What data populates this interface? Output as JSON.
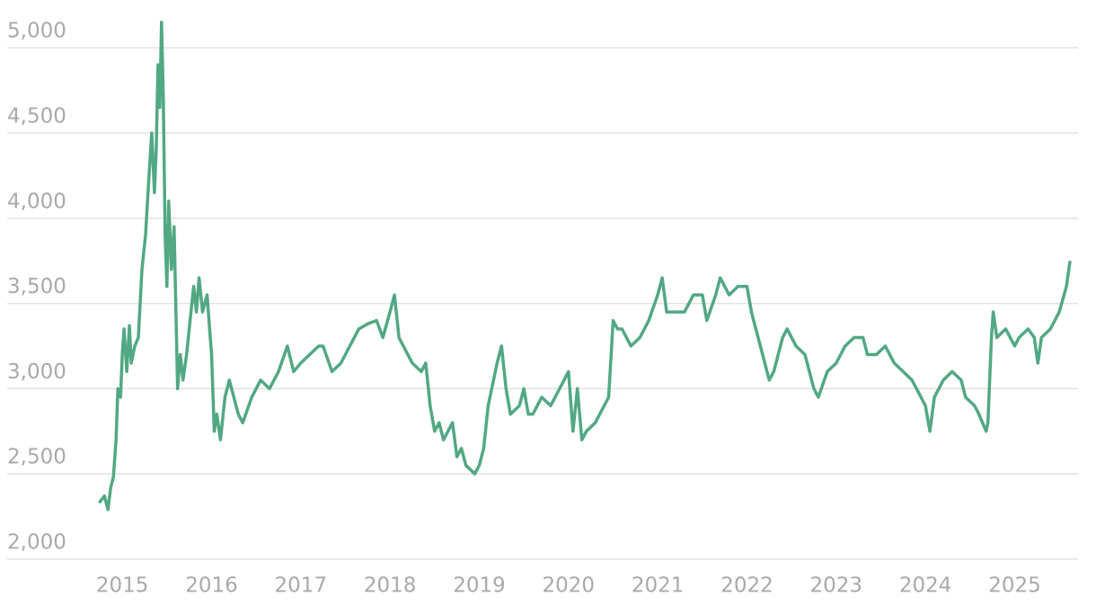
{
  "chart_data": {
    "type": "line",
    "x": [
      2014.74,
      2014.8,
      2014.84,
      2014.87,
      2014.9,
      2014.93,
      2014.95,
      2014.98,
      2015.0,
      2015.02,
      2015.05,
      2015.08,
      2015.1,
      2015.14,
      2015.18,
      2015.22,
      2015.26,
      2015.3,
      2015.33,
      2015.36,
      2015.38,
      2015.4,
      2015.42,
      2015.44,
      2015.46,
      2015.48,
      2015.5,
      2015.52,
      2015.55,
      2015.58,
      2015.62,
      2015.65,
      2015.68,
      2015.72,
      2015.76,
      2015.8,
      2015.83,
      2015.86,
      2015.9,
      2015.95,
      2016.0,
      2016.03,
      2016.06,
      2016.1,
      2016.15,
      2016.2,
      2016.25,
      2016.3,
      2016.35,
      2016.45,
      2016.55,
      2016.65,
      2016.75,
      2016.85,
      2016.92,
      2017.0,
      2017.1,
      2017.2,
      2017.25,
      2017.35,
      2017.45,
      2017.55,
      2017.65,
      2017.75,
      2017.85,
      2017.92,
      2018.0,
      2018.05,
      2018.1,
      2018.15,
      2018.25,
      2018.35,
      2018.4,
      2018.45,
      2018.5,
      2018.55,
      2018.6,
      2018.7,
      2018.75,
      2018.8,
      2018.85,
      2018.95,
      2019.0,
      2019.05,
      2019.1,
      2019.2,
      2019.25,
      2019.3,
      2019.35,
      2019.45,
      2019.5,
      2019.55,
      2019.6,
      2019.7,
      2019.8,
      2019.9,
      2020.0,
      2020.05,
      2020.1,
      2020.15,
      2020.2,
      2020.3,
      2020.4,
      2020.45,
      2020.5,
      2020.55,
      2020.6,
      2020.7,
      2020.8,
      2020.9,
      2021.0,
      2021.05,
      2021.1,
      2021.2,
      2021.3,
      2021.4,
      2021.5,
      2021.55,
      2021.65,
      2021.7,
      2021.8,
      2021.9,
      2022.0,
      2022.05,
      2022.15,
      2022.25,
      2022.3,
      2022.4,
      2022.45,
      2022.55,
      2022.65,
      2022.75,
      2022.8,
      2022.9,
      2023.0,
      2023.1,
      2023.2,
      2023.3,
      2023.35,
      2023.45,
      2023.55,
      2023.65,
      2023.75,
      2023.85,
      2023.95,
      2024.0,
      2024.05,
      2024.1,
      2024.2,
      2024.3,
      2024.4,
      2024.45,
      2024.55,
      2024.6,
      2024.68,
      2024.7,
      2024.74,
      2024.76,
      2024.8,
      2024.9,
      2025.0,
      2025.05,
      2025.15,
      2025.22,
      2025.26,
      2025.3,
      2025.4,
      2025.5,
      2025.58,
      2025.62
    ],
    "series": [
      {
        "color": "#52a883",
        "values": [
          2330,
          2370,
          2290,
          2420,
          2480,
          2700,
          3000,
          2950,
          3200,
          3350,
          3100,
          3370,
          3150,
          3250,
          3300,
          3700,
          3900,
          4250,
          4500,
          4150,
          4400,
          4900,
          4650,
          5150,
          4700,
          3900,
          3600,
          4100,
          3700,
          3950,
          3000,
          3200,
          3050,
          3200,
          3400,
          3600,
          3450,
          3650,
          3450,
          3550,
          3200,
          2750,
          2850,
          2700,
          2950,
          3050,
          2950,
          2850,
          2800,
          2950,
          3050,
          3000,
          3100,
          3250,
          3100,
          3150,
          3200,
          3250,
          3250,
          3100,
          3150,
          3250,
          3350,
          3380,
          3400,
          3300,
          3450,
          3550,
          3300,
          3250,
          3150,
          3100,
          3150,
          2900,
          2750,
          2800,
          2700,
          2800,
          2600,
          2650,
          2550,
          2500,
          2550,
          2650,
          2900,
          3150,
          3250,
          3000,
          2850,
          2900,
          3000,
          2850,
          2850,
          2950,
          2900,
          3000,
          3100,
          2750,
          3000,
          2700,
          2750,
          2800,
          2900,
          2950,
          3400,
          3350,
          3350,
          3250,
          3300,
          3400,
          3550,
          3650,
          3450,
          3450,
          3450,
          3550,
          3550,
          3400,
          3550,
          3650,
          3550,
          3600,
          3600,
          3450,
          3250,
          3050,
          3100,
          3300,
          3350,
          3250,
          3200,
          3000,
          2950,
          3100,
          3150,
          3250,
          3300,
          3300,
          3200,
          3200,
          3250,
          3150,
          3100,
          3050,
          2950,
          2900,
          2750,
          2950,
          3050,
          3100,
          3050,
          2950,
          2900,
          2850,
          2750,
          2800,
          3300,
          3450,
          3300,
          3350,
          3250,
          3300,
          3350,
          3300,
          3150,
          3300,
          3350,
          3450,
          3600,
          3750
        ]
      }
    ],
    "xlim": [
      2013.71,
      2025.71
    ],
    "xticks": [
      2015,
      2016,
      2017,
      2018,
      2019,
      2020,
      2021,
      2022,
      2023,
      2024,
      2025
    ],
    "ylim": [
      2000,
      5175
    ],
    "yticks": [
      {
        "value": 2000,
        "label": "2,000"
      },
      {
        "value": 2500,
        "label": "2,500"
      },
      {
        "value": 3000,
        "label": "3,000"
      },
      {
        "value": 3500,
        "label": "3,500"
      },
      {
        "value": 4000,
        "label": "4,000"
      },
      {
        "value": 4500,
        "label": "4,500"
      },
      {
        "value": 5000,
        "label": "5,000"
      }
    ],
    "grid": true
  }
}
